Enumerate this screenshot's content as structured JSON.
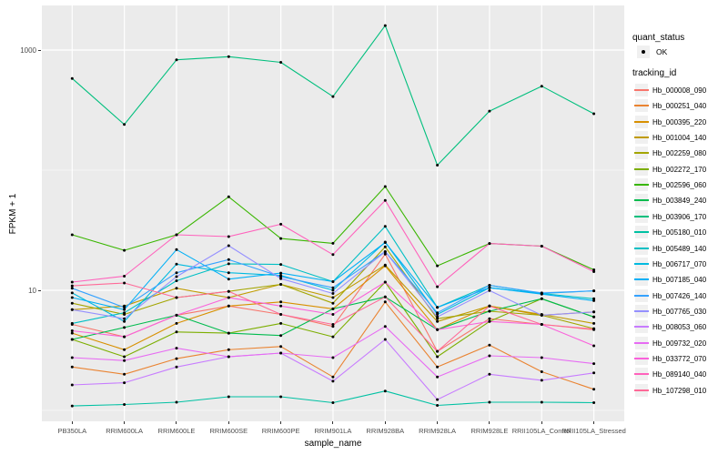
{
  "axes": {
    "y": {
      "title": "FPKM + 1",
      "scale": "log10",
      "tick_labels": [
        "1000",
        "10"
      ],
      "tick_values": [
        1000,
        10
      ],
      "minor_gridline_values": [
        100,
        1
      ]
    },
    "x": {
      "title": "sample_name"
    }
  },
  "legend": {
    "quant_status_title": "quant_status",
    "quant_status_items": [
      {
        "label": "OK",
        "marker": "point"
      }
    ],
    "tracking_id_title": "tracking_id"
  },
  "chart_data": {
    "type": "line",
    "title": "",
    "xlabel": "sample_name",
    "ylabel": "FPKM + 1",
    "y_scale": "log10",
    "ylim": [
      0.75,
      2350
    ],
    "y_breaks": [
      10,
      1000
    ],
    "y_minor_breaks": [
      1,
      100
    ],
    "grid": "on",
    "legend_position": "right",
    "panel_background": "#EBEBEB",
    "marker": {
      "shape": "point",
      "color": "#000000",
      "legend": "quant_status = OK"
    },
    "categories": [
      "PB350LA",
      "RRIM600LA",
      "RRIM600LE",
      "RRIM600SE",
      "RRIM600PE",
      "RRIM901LA",
      "RRIM928BA",
      "RRIM928LA",
      "RRIM928LE",
      "RRII105LA_Control",
      "RRII105LA_Stressed"
    ],
    "series": [
      {
        "name": "Hb_000008_090",
        "color": "#F8766D",
        "quant_status": "OK",
        "values": [
          5.2,
          4.1,
          6.2,
          7.4,
          6.3,
          5.0,
          20,
          3.1,
          5.8,
          5.2,
          4.7
        ]
      },
      {
        "name": "Hb_000251_040",
        "color": "#EA8331",
        "quant_status": "OK",
        "values": [
          2.3,
          2.0,
          2.7,
          3.2,
          3.4,
          1.9,
          8.0,
          2.3,
          3.5,
          2.1,
          1.5
        ]
      },
      {
        "name": "Hb_000395_220",
        "color": "#D89000",
        "quant_status": "OK",
        "values": [
          4.4,
          3.2,
          5.3,
          7.4,
          8.0,
          7.0,
          16,
          4.7,
          7.4,
          6.2,
          6.6
        ]
      },
      {
        "name": "Hb_001004_140",
        "color": "#C09B00",
        "quant_status": "OK",
        "values": [
          6.9,
          7.4,
          10.4,
          8.7,
          11.2,
          8.7,
          16.2,
          5.5,
          7.4,
          6.3,
          5.3
        ]
      },
      {
        "name": "Hb_002259_080",
        "color": "#A3A500",
        "quant_status": "OK",
        "values": [
          7.8,
          6.3,
          8.7,
          9.8,
          11.2,
          7.8,
          23,
          5.8,
          6.7,
          6.2,
          4.8
        ]
      },
      {
        "name": "Hb_002272_170",
        "color": "#7CAE00",
        "quant_status": "OK",
        "values": [
          3.9,
          2.8,
          4.5,
          4.4,
          5.3,
          4.1,
          11.7,
          2.8,
          5.5,
          8.5,
          6.0
        ]
      },
      {
        "name": "Hb_002596_060",
        "color": "#39B600",
        "quant_status": "OK",
        "values": [
          29,
          21.5,
          29,
          60,
          27,
          24.6,
          73,
          16,
          24.5,
          23.3,
          14.8
        ]
      },
      {
        "name": "Hb_003849_240",
        "color": "#00BB4E",
        "quant_status": "OK",
        "values": [
          3.9,
          4.9,
          6.2,
          4.4,
          4.2,
          7.0,
          8.8,
          4.7,
          6.7,
          8.5,
          6.0
        ]
      },
      {
        "name": "Hb_003906_170",
        "color": "#00BF7D",
        "quant_status": "OK",
        "values": [
          580,
          240,
          830,
          880,
          790,
          410,
          1600,
          110,
          310,
          500,
          295
        ]
      },
      {
        "name": "Hb_005180_010",
        "color": "#00C1A3",
        "quant_status": "OK",
        "values": [
          1.09,
          1.12,
          1.17,
          1.3,
          1.3,
          1.16,
          1.45,
          1.1,
          1.17,
          1.17,
          1.16
        ]
      },
      {
        "name": "Hb_005489_140",
        "color": "#00BFC4",
        "quant_status": "OK",
        "values": [
          5.3,
          6.5,
          12,
          16.6,
          16.4,
          11.8,
          34,
          7.2,
          11,
          9.4,
          8.5
        ]
      },
      {
        "name": "Hb_006717_070",
        "color": "#00BAE0",
        "quant_status": "OK",
        "values": [
          9.5,
          5.5,
          16.5,
          14,
          13.3,
          10,
          25.2,
          6.3,
          10.5,
          9.4,
          9.9
        ]
      },
      {
        "name": "Hb_007185_040",
        "color": "#00B0F6",
        "quant_status": "OK",
        "values": [
          8.7,
          6.9,
          21.8,
          12.4,
          13.9,
          11.8,
          25,
          7.2,
          10.5,
          9.3,
          8.2
        ]
      },
      {
        "name": "Hb_007426_140",
        "color": "#35A2FF",
        "quant_status": "OK",
        "values": [
          10.4,
          7.2,
          14,
          18,
          13,
          10.5,
          21,
          6.5,
          11,
          9.5,
          9.9
        ]
      },
      {
        "name": "Hb_007765_030",
        "color": "#9590FF",
        "quant_status": "OK",
        "values": [
          6.9,
          5.8,
          13,
          23.5,
          12.5,
          9.4,
          20.9,
          6.0,
          9.95,
          6.2,
          6.6
        ]
      },
      {
        "name": "Hb_008053_060",
        "color": "#C77CFF",
        "quant_status": "OK",
        "values": [
          1.63,
          1.7,
          2.3,
          2.8,
          3.0,
          1.75,
          3.9,
          1.23,
          2.0,
          1.78,
          2.05
        ]
      },
      {
        "name": "Hb_009732_020",
        "color": "#E76BF3",
        "quant_status": "OK",
        "values": [
          2.75,
          2.6,
          3.3,
          2.8,
          3.0,
          2.75,
          5.0,
          1.9,
          2.85,
          2.75,
          2.45
        ]
      },
      {
        "name": "Hb_033772_070",
        "color": "#FA62DB",
        "quant_status": "OK",
        "values": [
          4.6,
          4.1,
          6.2,
          8.7,
          7.4,
          6.3,
          11.7,
          4.7,
          5.5,
          5.2,
          3.45
        ]
      },
      {
        "name": "Hb_089140_040",
        "color": "#FF62BC",
        "quant_status": "OK",
        "values": [
          11.7,
          13.1,
          29,
          28,
          35.5,
          19.8,
          56,
          10.7,
          24.5,
          23.3,
          14.3
        ]
      },
      {
        "name": "Hb_107298_010",
        "color": "#FF6A98",
        "quant_status": "OK",
        "values": [
          10.9,
          11.5,
          8.7,
          9.8,
          6.3,
          5.2,
          8.8,
          3.1,
          7.4,
          5.2,
          4.75
        ]
      }
    ]
  }
}
